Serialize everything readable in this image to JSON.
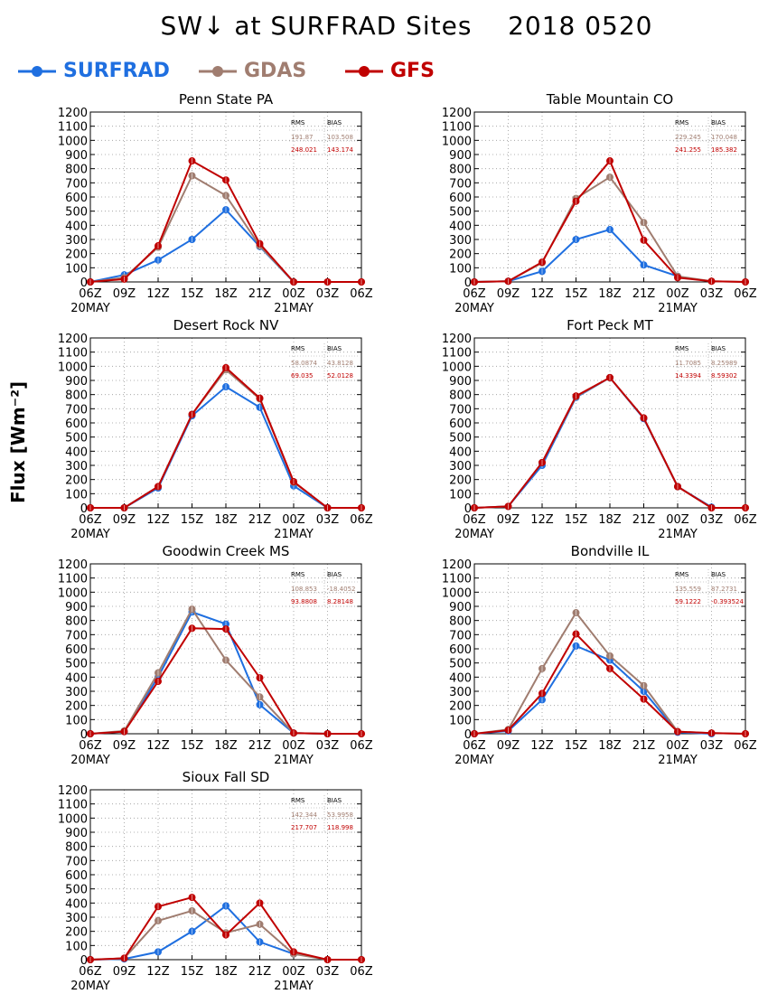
{
  "header": {
    "title": "SW↓ at SURFRAD Sites    2018 0520",
    "ylabel": "Flux [Wm⁻²]"
  },
  "legend": [
    {
      "name": "SURFRAD",
      "color": "#1f6fe0"
    },
    {
      "name": "GDAS",
      "color": "#a07d70"
    },
    {
      "name": "GFS",
      "color": "#c00000"
    }
  ],
  "stats_headers": {
    "rms": "RMS",
    "bias": "BIAS"
  },
  "chart_data": [
    {
      "type": "line",
      "title": "Penn State PA",
      "x": [
        "06Z",
        "09Z",
        "12Z",
        "15Z",
        "18Z",
        "21Z",
        "00Z",
        "03Z",
        "06Z"
      ],
      "x_sublabels": {
        "0": "20MAY",
        "6": "21MAY"
      },
      "ylim": [
        0,
        1200
      ],
      "yticks": [
        0,
        100,
        200,
        300,
        400,
        500,
        600,
        700,
        800,
        900,
        1000,
        1100,
        1200
      ],
      "grid": true,
      "series": [
        {
          "name": "SURFRAD",
          "values": [
            0,
            50,
            155,
            300,
            510,
            250,
            0,
            null,
            null
          ]
        },
        {
          "name": "GDAS",
          "values": [
            0,
            30,
            245,
            750,
            610,
            255,
            0,
            0,
            0
          ]
        },
        {
          "name": "GFS",
          "values": [
            0,
            20,
            255,
            855,
            720,
            270,
            0,
            0,
            0
          ]
        }
      ],
      "stats": {
        "gdas_rms": "191.87",
        "gdas_bias": "103.508",
        "gfs_rms": "248.021",
        "gfs_bias": "143.174"
      }
    },
    {
      "type": "line",
      "title": "Table Mountain CO",
      "x": [
        "06Z",
        "09Z",
        "12Z",
        "15Z",
        "18Z",
        "21Z",
        "00Z",
        "03Z",
        "06Z"
      ],
      "x_sublabels": {
        "0": "20MAY",
        "6": "21MAY"
      },
      "ylim": [
        0,
        1200
      ],
      "yticks": [
        0,
        100,
        200,
        300,
        400,
        500,
        600,
        700,
        800,
        900,
        1000,
        1100,
        1200
      ],
      "grid": true,
      "series": [
        {
          "name": "SURFRAD",
          "values": [
            0,
            5,
            75,
            300,
            370,
            120,
            40,
            null,
            null
          ]
        },
        {
          "name": "GDAS",
          "values": [
            0,
            5,
            135,
            590,
            740,
            420,
            40,
            5,
            0
          ]
        },
        {
          "name": "GFS",
          "values": [
            0,
            5,
            140,
            570,
            855,
            295,
            30,
            5,
            0
          ]
        }
      ],
      "stats": {
        "gdas_rms": "229.245",
        "gdas_bias": "170.048",
        "gfs_rms": "241.255",
        "gfs_bias": "185.382"
      }
    },
    {
      "type": "line",
      "title": "Desert Rock NV",
      "x": [
        "06Z",
        "09Z",
        "12Z",
        "15Z",
        "18Z",
        "21Z",
        "00Z",
        "03Z",
        "06Z"
      ],
      "x_sublabels": {
        "0": "20MAY",
        "6": "21MAY"
      },
      "ylim": [
        0,
        1200
      ],
      "yticks": [
        0,
        100,
        200,
        300,
        400,
        500,
        600,
        700,
        800,
        900,
        1000,
        1100,
        1200
      ],
      "grid": true,
      "series": [
        {
          "name": "SURFRAD",
          "values": [
            0,
            0,
            140,
            650,
            855,
            710,
            155,
            0,
            null
          ]
        },
        {
          "name": "GDAS",
          "values": [
            0,
            0,
            150,
            660,
            975,
            770,
            180,
            0,
            0
          ]
        },
        {
          "name": "GFS",
          "values": [
            0,
            0,
            150,
            660,
            990,
            775,
            185,
            0,
            0
          ]
        }
      ],
      "stats": {
        "gdas_rms": "58.0874",
        "gdas_bias": "43.8128",
        "gfs_rms": "69.035",
        "gfs_bias": "52.0128"
      }
    },
    {
      "type": "line",
      "title": "Fort Peck MT",
      "x": [
        "06Z",
        "09Z",
        "12Z",
        "15Z",
        "18Z",
        "21Z",
        "00Z",
        "03Z",
        "06Z"
      ],
      "x_sublabels": {
        "0": "20MAY",
        "6": "21MAY"
      },
      "ylim": [
        0,
        1200
      ],
      "yticks": [
        0,
        100,
        200,
        300,
        400,
        500,
        600,
        700,
        800,
        900,
        1000,
        1100,
        1200
      ],
      "grid": true,
      "series": [
        {
          "name": "SURFRAD",
          "values": [
            0,
            10,
            300,
            780,
            920,
            630,
            150,
            5,
            null
          ]
        },
        {
          "name": "GDAS",
          "values": [
            0,
            10,
            320,
            785,
            920,
            635,
            150,
            0,
            0
          ]
        },
        {
          "name": "GFS",
          "values": [
            0,
            10,
            320,
            790,
            920,
            635,
            150,
            0,
            0
          ]
        }
      ],
      "stats": {
        "gdas_rms": "11.7085",
        "gdas_bias": "8.25989",
        "gfs_rms": "14.3394",
        "gfs_bias": "8.59302"
      }
    },
    {
      "type": "line",
      "title": "Goodwin Creek MS",
      "x": [
        "06Z",
        "09Z",
        "12Z",
        "15Z",
        "18Z",
        "21Z",
        "00Z",
        "03Z",
        "06Z"
      ],
      "x_sublabels": {
        "0": "20MAY",
        "6": "21MAY"
      },
      "ylim": [
        0,
        1200
      ],
      "yticks": [
        0,
        100,
        200,
        300,
        400,
        500,
        600,
        700,
        800,
        900,
        1000,
        1100,
        1200
      ],
      "grid": true,
      "series": [
        {
          "name": "SURFRAD",
          "values": [
            0,
            15,
            400,
            860,
            775,
            205,
            5,
            0,
            null
          ]
        },
        {
          "name": "GDAS",
          "values": [
            0,
            20,
            430,
            880,
            520,
            260,
            5,
            0,
            0
          ]
        },
        {
          "name": "GFS",
          "values": [
            0,
            15,
            370,
            745,
            740,
            395,
            5,
            0,
            0
          ]
        }
      ],
      "stats": {
        "gdas_rms": "108.853",
        "gdas_bias": "-18.4052",
        "gfs_rms": "93.8808",
        "gfs_bias": "8.28148"
      }
    },
    {
      "type": "line",
      "title": "Bondville IL",
      "x": [
        "06Z",
        "09Z",
        "12Z",
        "15Z",
        "18Z",
        "21Z",
        "00Z",
        "03Z",
        "06Z"
      ],
      "x_sublabels": {
        "0": "20MAY",
        "6": "21MAY"
      },
      "ylim": [
        0,
        1200
      ],
      "yticks": [
        0,
        100,
        200,
        300,
        400,
        500,
        600,
        700,
        800,
        900,
        1000,
        1100,
        1200
      ],
      "grid": true,
      "series": [
        {
          "name": "SURFRAD",
          "values": [
            0,
            20,
            240,
            620,
            520,
            300,
            10,
            0,
            null
          ]
        },
        {
          "name": "GDAS",
          "values": [
            0,
            30,
            460,
            855,
            550,
            340,
            15,
            5,
            0
          ]
        },
        {
          "name": "GFS",
          "values": [
            0,
            25,
            285,
            705,
            460,
            245,
            15,
            5,
            0
          ]
        }
      ],
      "stats": {
        "gdas_rms": "135.559",
        "gdas_bias": "87.2731",
        "gfs_rms": "59.1222",
        "gfs_bias": "-0.393524"
      }
    },
    {
      "type": "line",
      "title": "Sioux Fall SD",
      "x": [
        "06Z",
        "09Z",
        "12Z",
        "15Z",
        "18Z",
        "21Z",
        "00Z",
        "03Z",
        "06Z"
      ],
      "x_sublabels": {
        "0": "20MAY",
        "6": "21MAY"
      },
      "ylim": [
        0,
        1200
      ],
      "yticks": [
        0,
        100,
        200,
        300,
        400,
        500,
        600,
        700,
        800,
        900,
        1000,
        1100,
        1200
      ],
      "grid": true,
      "series": [
        {
          "name": "SURFRAD",
          "values": [
            0,
            5,
            55,
            200,
            380,
            125,
            40,
            null,
            null
          ]
        },
        {
          "name": "GDAS",
          "values": [
            0,
            10,
            275,
            345,
            190,
            250,
            40,
            0,
            0
          ]
        },
        {
          "name": "GFS",
          "values": [
            0,
            10,
            375,
            440,
            175,
            400,
            55,
            0,
            0
          ]
        }
      ],
      "stats": {
        "gdas_rms": "142.344",
        "gdas_bias": "53.9958",
        "gfs_rms": "217.707",
        "gfs_bias": "118.998"
      }
    }
  ]
}
